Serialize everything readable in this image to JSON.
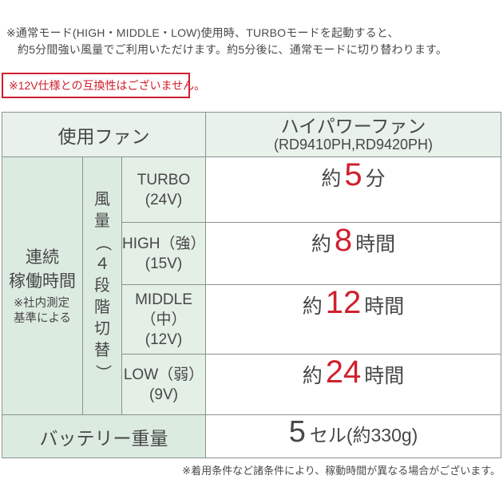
{
  "note_top": {
    "line1": "※通常モード(HIGH・MIDDLE・LOW)使用時、TURBOモードを起動すると、",
    "line2": "約5分間強い風量でご利用いただけます。約5分後に、通常モードに切り替わります。"
  },
  "warning_box": {
    "text": "※12V仕様との互換性はございません。"
  },
  "table": {
    "header": {
      "fan_label": "使用ファン",
      "fan_name": "ハイパワーファン",
      "fan_models": "(RD9410PH,RD9420PH)"
    },
    "duration": {
      "label_line1": "連続",
      "label_line2": "稼働時間",
      "note_line1": "※社内測定",
      "note_line2": "基準による"
    },
    "airflow_label_vertical": "風量（４段階切替）",
    "rows": [
      {
        "mode_line1": "TURBO",
        "mode_line2": "(24V)",
        "prefix": "約",
        "value": "5",
        "unit": "分"
      },
      {
        "mode_line1": "HIGH（強）",
        "mode_line2": "(15V)",
        "prefix": "約",
        "value": "8",
        "unit": "時間"
      },
      {
        "mode_line1": "MIDDLE",
        "mode_line2": "（中）",
        "mode_line3": "(12V)",
        "prefix": "約",
        "value": "12",
        "unit": "時間"
      },
      {
        "mode_line1": "LOW（弱）",
        "mode_line2": "(9V)",
        "prefix": "約",
        "value": "24",
        "unit": "時間"
      }
    ],
    "battery": {
      "label": "バッテリー重量",
      "number": "5",
      "suffix": "セル(約330g)"
    }
  },
  "footnote": "※着用条件など諸条件により、稼動時間が異なる場合がございます。",
  "colors": {
    "accent_red": "#cf202d",
    "header_bg": "#e8f1ea",
    "group_bg": "#dcebe0",
    "mode_bg": "#e4efe6",
    "grid_line": "#8a938e",
    "text_dark": "#474747"
  }
}
